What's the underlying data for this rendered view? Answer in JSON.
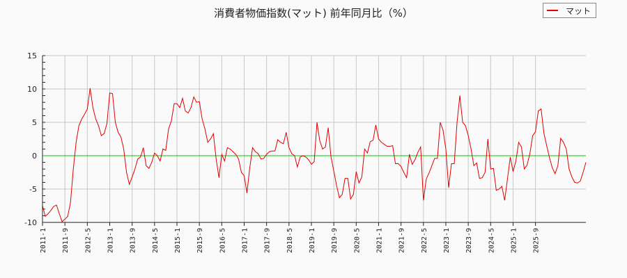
{
  "title": "消費者物価指数(マット) 前年同月比（%）",
  "legend": {
    "label": "マット",
    "color": "#e00000"
  },
  "chart_data": {
    "type": "line",
    "title": "消費者物価指数(マット) 前年同月比（%）",
    "xlabel": "",
    "ylabel": "",
    "ylim": [
      -10,
      15
    ],
    "yticks": [
      -10,
      -5,
      0,
      5,
      10,
      15
    ],
    "xticks": [
      "2011-1",
      "2011-9",
      "2012-5",
      "2013-1",
      "2013-9",
      "2014-5",
      "2015-1",
      "2015-9",
      "2016-5",
      "2017-1",
      "2017-9",
      "2018-5",
      "2019-1",
      "2019-9",
      "2020-5",
      "2021-1",
      "2021-9",
      "2022-5",
      "2023-1",
      "2023-9",
      "2024-5",
      "2025-1",
      "2025-9"
    ],
    "grid": true,
    "zero_line_color": "#00cc00",
    "x_start": "2011-1",
    "x_end": "2026-1",
    "series": [
      {
        "name": "マット",
        "color": "#e00000",
        "values": [
          -7.5,
          -9.1,
          -8.7,
          -8.2,
          -7.6,
          -7.4,
          -8.7,
          -9.9,
          -9.5,
          -9.1,
          -7.0,
          -2.0,
          2.0,
          4.5,
          5.5,
          6.2,
          7.0,
          10.1,
          7.2,
          5.5,
          4.5,
          3.0,
          3.3,
          4.8,
          9.4,
          9.3,
          5.0,
          3.5,
          2.8,
          1.0,
          -2.5,
          -4.3,
          -3.2,
          -2.0,
          -0.5,
          -0.2,
          1.2,
          -1.5,
          -1.9,
          -1.0,
          0.4,
          0.0,
          -0.8,
          1.0,
          0.8,
          4.0,
          5.2,
          7.8,
          7.8,
          7.2,
          8.6,
          6.7,
          6.4,
          7.2,
          8.8,
          8.0,
          8.1,
          5.5,
          4.0,
          2.0,
          2.5,
          3.3,
          -0.5,
          -3.3,
          0.2,
          -0.8,
          1.2,
          1.0,
          0.6,
          0.2,
          -0.5,
          -2.5,
          -3.0,
          -5.6,
          -1.8,
          1.2,
          0.6,
          0.3,
          -0.5,
          -0.4,
          0.2,
          0.6,
          0.7,
          0.7,
          2.4,
          2.0,
          1.8,
          3.5,
          1.2,
          0.3,
          0.0,
          -1.7,
          -0.2,
          0.0,
          -0.2,
          -0.6,
          -1.3,
          -0.9,
          5.0,
          2.2,
          1.0,
          1.3,
          4.2,
          -0.2,
          -2.3,
          -4.5,
          -6.3,
          -5.8,
          -3.4,
          -3.4,
          -6.5,
          -5.8,
          -2.4,
          -4.1,
          -3.2,
          1.0,
          0.4,
          2.1,
          2.3,
          4.6,
          2.5,
          2.0,
          1.7,
          1.4,
          1.4,
          1.5,
          -1.2,
          -1.2,
          -1.6,
          -2.5,
          -3.3,
          0.2,
          -1.3,
          -0.6,
          0.5,
          1.3,
          -6.7,
          -3.5,
          -2.6,
          -1.5,
          -0.4,
          -0.4,
          5.0,
          3.8,
          1.0,
          -4.8,
          -1.2,
          -1.2,
          5.0,
          9.0,
          5.0,
          4.5,
          3.0,
          1.0,
          -1.5,
          -1.1,
          -3.4,
          -3.3,
          -2.5,
          2.5,
          -2.0,
          -1.9,
          -5.2,
          -5.0,
          -4.6,
          -6.7,
          -3.5,
          -0.2,
          -2.4,
          -0.8,
          2.0,
          1.3,
          -2.0,
          -1.4,
          0.3,
          3.0,
          3.6,
          6.7,
          7.0,
          3.4,
          1.5,
          -0.3,
          -1.8,
          -2.7,
          -1.5,
          2.6,
          2.0,
          1.0,
          -2.0,
          -3.2,
          -4.0,
          -4.1,
          -3.8,
          -2.5,
          -1.0
        ]
      }
    ]
  }
}
